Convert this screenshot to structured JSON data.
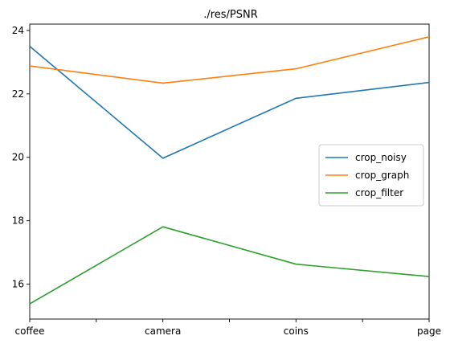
{
  "chart_data": {
    "type": "line",
    "title": "./res/PSNR",
    "xlabel": "",
    "ylabel": "",
    "categories": [
      "coffee",
      "camera",
      "coins",
      "page"
    ],
    "x_tick_labels": [
      "coffee",
      "",
      "camera",
      "",
      "coins",
      "",
      "page"
    ],
    "y_ticks": [
      16,
      18,
      20,
      22,
      24
    ],
    "ylim": [
      14.9,
      24.2
    ],
    "grid": false,
    "legend_position": "center-right",
    "series": [
      {
        "name": "crop_noisy",
        "color": "#1f77b4",
        "values": [
          23.5,
          19.97,
          21.86,
          22.36
        ]
      },
      {
        "name": "crop_graph",
        "color": "#ff7f0e",
        "values": [
          22.88,
          22.34,
          22.79,
          23.8
        ]
      },
      {
        "name": "crop_filter",
        "color": "#2ca02c",
        "values": [
          15.38,
          17.81,
          16.63,
          16.24
        ]
      }
    ]
  }
}
